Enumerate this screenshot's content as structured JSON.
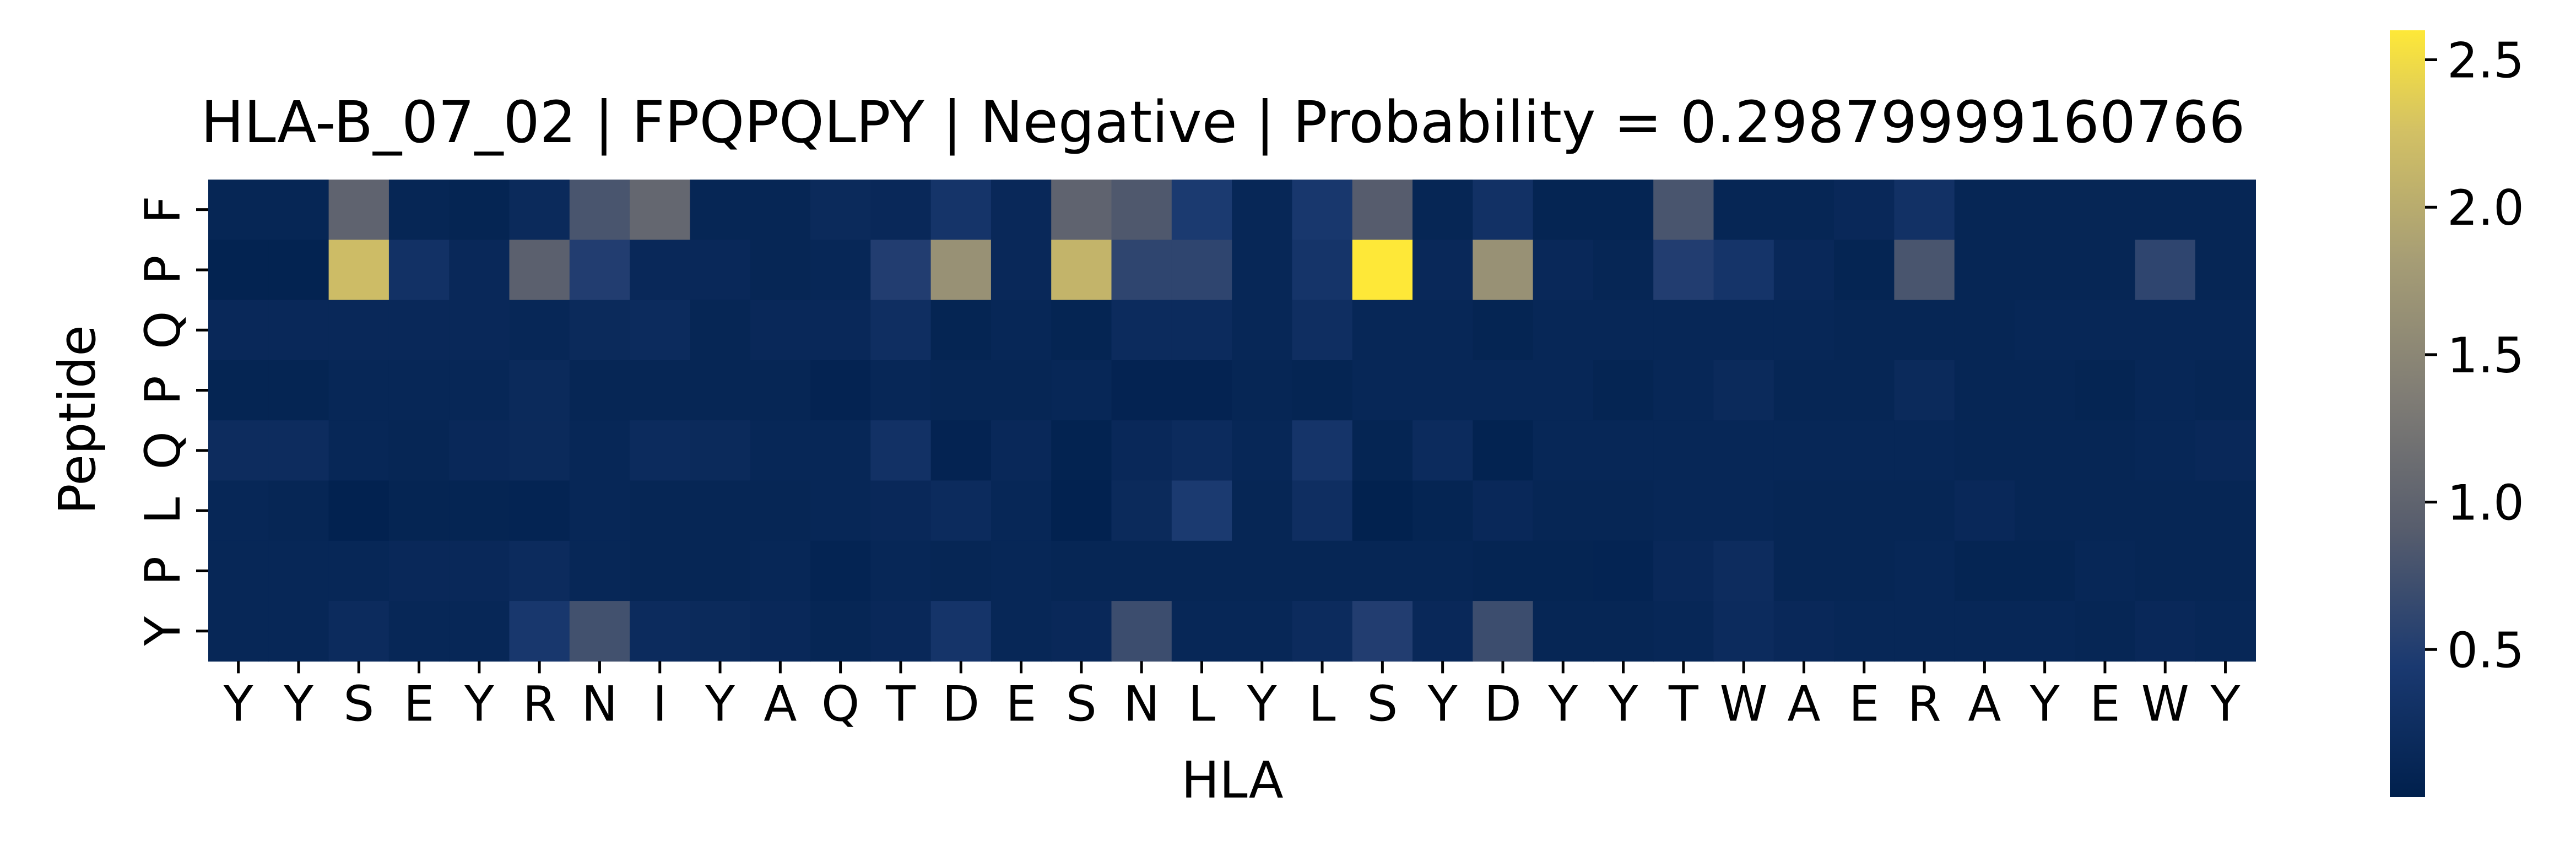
{
  "chart_data": {
    "type": "heatmap",
    "title": "HLA-B_07_02 | FPQPQLPY | Negative | Probability = 0.29879999160766",
    "xlabel": "HLA",
    "ylabel": "Peptide",
    "x_categories": [
      "Y",
      "Y",
      "S",
      "E",
      "Y",
      "R",
      "N",
      "I",
      "Y",
      "A",
      "Q",
      "T",
      "D",
      "E",
      "S",
      "N",
      "L",
      "Y",
      "L",
      "S",
      "Y",
      "D",
      "Y",
      "Y",
      "T",
      "W",
      "A",
      "E",
      "R",
      "A",
      "Y",
      "E",
      "W",
      "Y"
    ],
    "y_categories": [
      "F",
      "P",
      "Q",
      "P",
      "Q",
      "L",
      "P",
      "Y"
    ],
    "values": [
      [
        0.1,
        0.1,
        1.0,
        0.1,
        0.08,
        0.18,
        0.8,
        1.05,
        0.1,
        0.1,
        0.18,
        0.15,
        0.35,
        0.15,
        1.0,
        0.85,
        0.45,
        0.12,
        0.4,
        0.9,
        0.1,
        0.3,
        0.08,
        0.08,
        0.8,
        0.1,
        0.1,
        0.15,
        0.3,
        0.1,
        0.1,
        0.1,
        0.1,
        0.1
      ],
      [
        0.05,
        0.05,
        2.2,
        0.3,
        0.15,
        0.95,
        0.5,
        0.15,
        0.15,
        0.1,
        0.12,
        0.5,
        1.65,
        0.15,
        2.1,
        0.6,
        0.6,
        0.12,
        0.35,
        2.6,
        0.15,
        1.65,
        0.15,
        0.1,
        0.5,
        0.35,
        0.15,
        0.08,
        0.8,
        0.1,
        0.1,
        0.1,
        0.6,
        0.1
      ],
      [
        0.15,
        0.15,
        0.15,
        0.15,
        0.15,
        0.12,
        0.18,
        0.2,
        0.1,
        0.15,
        0.15,
        0.25,
        0.08,
        0.12,
        0.08,
        0.2,
        0.2,
        0.12,
        0.25,
        0.12,
        0.12,
        0.08,
        0.12,
        0.12,
        0.12,
        0.12,
        0.12,
        0.1,
        0.1,
        0.1,
        0.12,
        0.12,
        0.12,
        0.12
      ],
      [
        0.08,
        0.08,
        0.12,
        0.12,
        0.12,
        0.18,
        0.1,
        0.1,
        0.1,
        0.1,
        0.06,
        0.12,
        0.1,
        0.1,
        0.12,
        0.06,
        0.06,
        0.1,
        0.08,
        0.12,
        0.12,
        0.12,
        0.12,
        0.08,
        0.12,
        0.18,
        0.1,
        0.1,
        0.18,
        0.1,
        0.1,
        0.08,
        0.12,
        0.1
      ],
      [
        0.22,
        0.22,
        0.12,
        0.1,
        0.15,
        0.18,
        0.12,
        0.2,
        0.18,
        0.12,
        0.12,
        0.3,
        0.06,
        0.15,
        0.05,
        0.15,
        0.2,
        0.12,
        0.35,
        0.08,
        0.2,
        0.05,
        0.12,
        0.12,
        0.12,
        0.12,
        0.12,
        0.12,
        0.12,
        0.1,
        0.1,
        0.1,
        0.12,
        0.15
      ],
      [
        0.12,
        0.1,
        0.04,
        0.08,
        0.08,
        0.07,
        0.12,
        0.1,
        0.1,
        0.1,
        0.12,
        0.15,
        0.2,
        0.12,
        0.04,
        0.18,
        0.45,
        0.1,
        0.25,
        0.03,
        0.08,
        0.15,
        0.1,
        0.1,
        0.12,
        0.12,
        0.1,
        0.1,
        0.1,
        0.15,
        0.1,
        0.1,
        0.1,
        0.1
      ],
      [
        0.12,
        0.12,
        0.12,
        0.15,
        0.15,
        0.2,
        0.12,
        0.1,
        0.1,
        0.12,
        0.07,
        0.12,
        0.1,
        0.12,
        0.1,
        0.1,
        0.1,
        0.1,
        0.1,
        0.1,
        0.1,
        0.08,
        0.08,
        0.07,
        0.15,
        0.22,
        0.1,
        0.1,
        0.12,
        0.08,
        0.08,
        0.12,
        0.1,
        0.1
      ],
      [
        0.12,
        0.12,
        0.2,
        0.12,
        0.12,
        0.4,
        0.75,
        0.2,
        0.18,
        0.15,
        0.1,
        0.15,
        0.35,
        0.12,
        0.15,
        0.7,
        0.12,
        0.12,
        0.2,
        0.5,
        0.15,
        0.7,
        0.1,
        0.1,
        0.12,
        0.2,
        0.15,
        0.12,
        0.12,
        0.12,
        0.12,
        0.1,
        0.15,
        0.12
      ]
    ],
    "vmin": 0.0,
    "vmax": 2.6,
    "colormap": "cividis",
    "colorbar_ticks": [
      0.5,
      1.0,
      1.5,
      2.0,
      2.5
    ],
    "colorbar_tick_labels": [
      "0.5",
      "1.0",
      "1.5",
      "2.0",
      "2.5"
    ]
  }
}
